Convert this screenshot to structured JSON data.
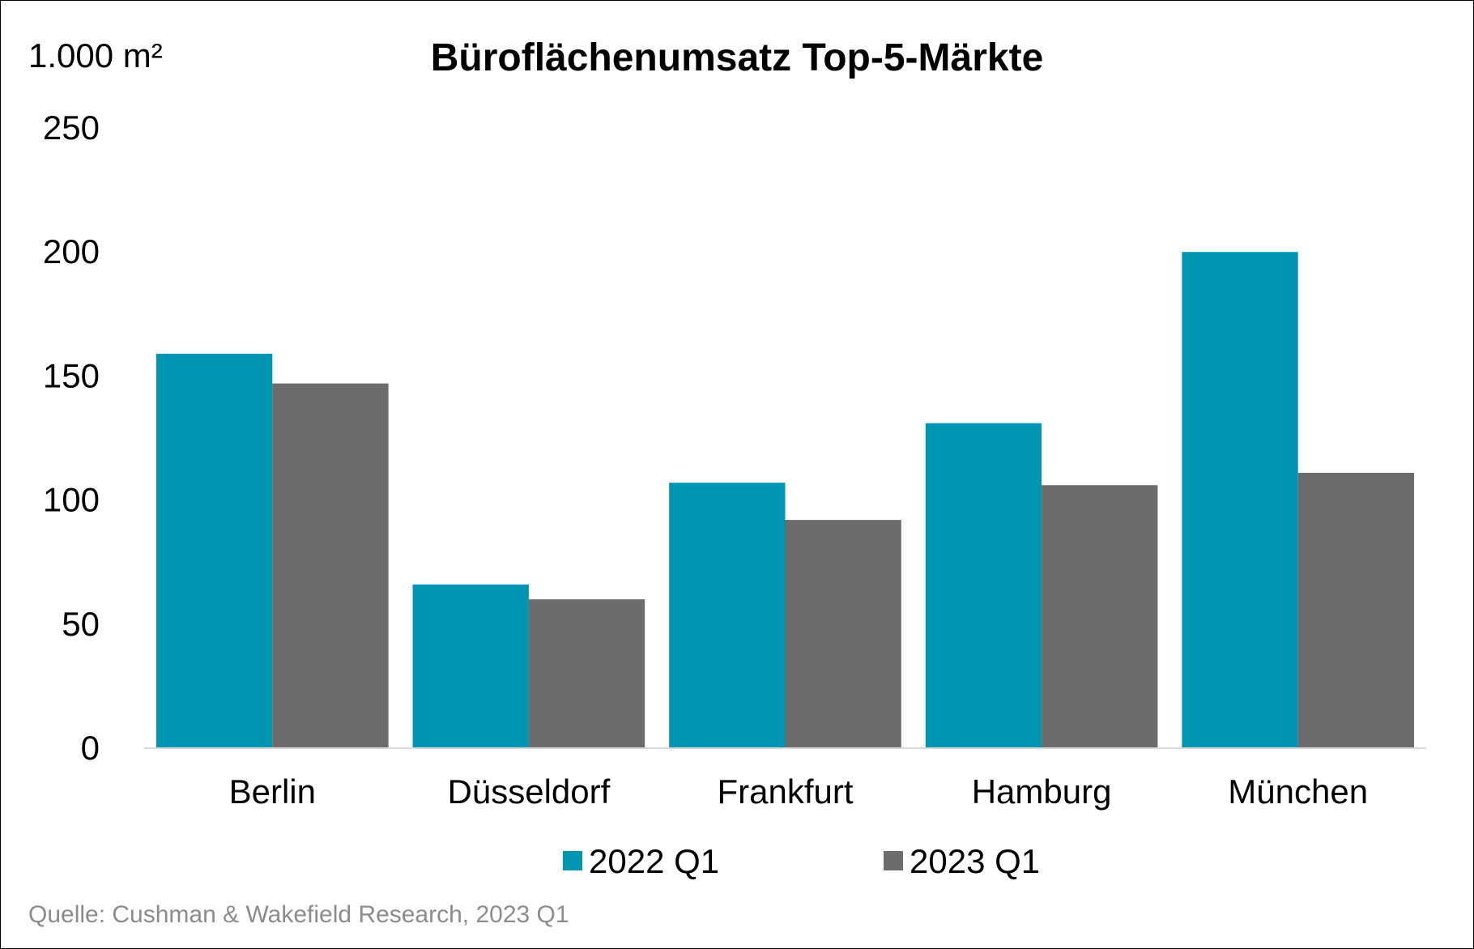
{
  "chart_data": {
    "type": "bar",
    "title": "Büroflächenumsatz Top-5-Märkte",
    "unit_label": "1.000 m²",
    "categories": [
      "Berlin",
      "Düsseldorf",
      "Frankfurt",
      "Hamburg",
      "München"
    ],
    "series": [
      {
        "name": "2022 Q1",
        "color": "#0095B3",
        "values": [
          159,
          66,
          107,
          131,
          200
        ]
      },
      {
        "name": "2023 Q1",
        "color": "#6B6C6B",
        "values": [
          147,
          60,
          92,
          106,
          111
        ]
      }
    ],
    "ylim": [
      0,
      250
    ],
    "yticks": [
      "0",
      "50",
      "100",
      "150",
      "200",
      "250"
    ],
    "grid": false,
    "legend_position": "bottom-center"
  },
  "source": "Quelle: Cushman & Wakefield Research, 2023 Q1"
}
